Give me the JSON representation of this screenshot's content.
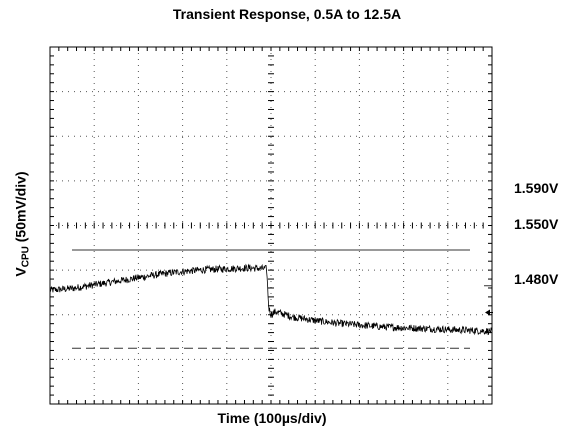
{
  "chart_data": {
    "type": "line",
    "title": "Transient Response, 0.5A to 12.5A",
    "xlabel": "Time (100µs/div)",
    "ylabel": {
      "main": "V",
      "sub": "CPU",
      "rest": " (50mV/div)"
    },
    "grid": true,
    "x_divisions": 10,
    "y_divisions": 8,
    "x_unit": "div",
    "y_unit": "V",
    "y_per_div": 0.05,
    "ylim": [
      1.4175,
      1.8175
    ],
    "reference_levels": [
      {
        "label": "1.590V",
        "value": 1.59,
        "style": "solid"
      },
      {
        "label": "1.550V",
        "value": 1.55,
        "style": "marker"
      },
      {
        "label": "1.480V",
        "value": 1.48,
        "style": "dashed"
      }
    ],
    "trace": {
      "x": [
        0,
        0.5,
        1,
        1.5,
        2,
        2.5,
        3,
        3.5,
        4,
        4.5,
        4.9,
        4.95,
        5.0,
        5.1,
        5.5,
        6,
        6.5,
        7,
        7.5,
        8,
        8.5,
        9,
        9.5,
        10
      ],
      "y": [
        1.545,
        1.547,
        1.551,
        1.555,
        1.559,
        1.563,
        1.566,
        1.568,
        1.569,
        1.57,
        1.569,
        1.525,
        1.518,
        1.521,
        1.515,
        1.511,
        1.508,
        1.506,
        1.504,
        1.503,
        1.502,
        1.501,
        1.5,
        1.499
      ]
    },
    "trigger_marker": {
      "value": 1.52,
      "symbol": "arrow-left"
    }
  }
}
